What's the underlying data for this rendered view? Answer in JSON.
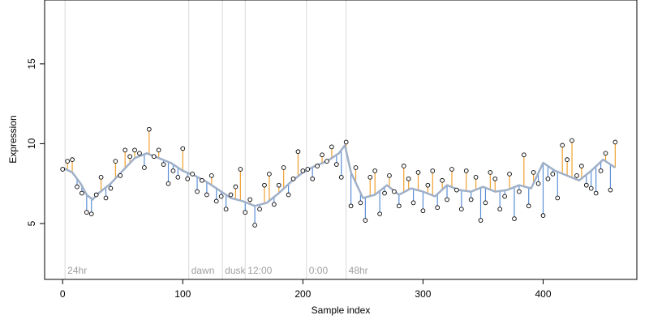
{
  "chart_data": {
    "type": "scatter",
    "title": "",
    "xlabel": "Sample index",
    "ylabel": "Expression",
    "xlim": [
      -15,
      478
    ],
    "ylim": [
      1.5,
      19.0
    ],
    "x_ticks": [
      0,
      100,
      200,
      300,
      400
    ],
    "y_ticks": [
      5,
      10,
      15
    ],
    "grid": false,
    "legend": null,
    "colors": {
      "point_stroke": "#000000",
      "smooth_line": "#9fb0c8",
      "residual_positive": "#f0a030",
      "residual_negative": "#5b8fd6",
      "phase_line": "#d9d9d9",
      "phase_text": "#a0a0a0"
    },
    "phase_markers": [
      {
        "label": "24hr",
        "x": 2
      },
      {
        "label": "dawn",
        "x": 105
      },
      {
        "label": "dusk",
        "x": 133
      },
      {
        "label": "12:00",
        "x": 152
      },
      {
        "label": "0:00",
        "x": 203
      },
      {
        "label": "48hr",
        "x": 236
      }
    ],
    "smooth_trend": {
      "name": "",
      "x": [
        0,
        8,
        15,
        20,
        25,
        30,
        40,
        50,
        60,
        70,
        80,
        90,
        100,
        110,
        120,
        130,
        140,
        150,
        160,
        170,
        180,
        190,
        200,
        210,
        220,
        230,
        235,
        240,
        250,
        260,
        270,
        280,
        290,
        300,
        310,
        320,
        330,
        340,
        350,
        360,
        370,
        380,
        390,
        400,
        410,
        420,
        430,
        440,
        450,
        460
      ],
      "y": [
        8.5,
        8.2,
        7.5,
        6.8,
        6.5,
        6.9,
        7.5,
        8.3,
        9.1,
        9.4,
        9.1,
        8.8,
        8.3,
        8.0,
        7.6,
        7.1,
        6.6,
        6.4,
        6.1,
        6.3,
        6.9,
        7.6,
        8.2,
        8.6,
        8.9,
        9.4,
        9.9,
        8.2,
        6.6,
        6.8,
        7.4,
        6.8,
        7.2,
        7.0,
        6.7,
        7.4,
        7.1,
        7.0,
        7.3,
        7.0,
        7.1,
        7.4,
        7.2,
        8.8,
        8.3,
        8.0,
        7.7,
        8.3,
        9.0,
        8.5
      ]
    },
    "series": [
      {
        "name": "",
        "x": [
          0,
          4,
          8,
          12,
          16,
          20,
          24,
          28,
          32,
          36,
          40,
          44,
          48,
          52,
          56,
          60,
          64,
          68,
          72,
          76,
          80,
          84,
          88,
          92,
          96,
          100,
          104,
          108,
          112,
          116,
          120,
          124,
          128,
          132,
          136,
          140,
          144,
          148,
          152,
          156,
          160,
          164,
          168,
          172,
          176,
          180,
          184,
          188,
          192,
          196,
          200,
          204,
          208,
          212,
          216,
          220,
          224,
          228,
          232,
          236,
          240,
          244,
          248,
          252,
          256,
          260,
          264,
          268,
          272,
          276,
          280,
          284,
          288,
          292,
          296,
          300,
          304,
          308,
          312,
          316,
          320,
          324,
          328,
          332,
          336,
          340,
          344,
          348,
          352,
          356,
          360,
          364,
          368,
          372,
          376,
          380,
          384,
          388,
          392,
          396,
          400,
          404,
          408,
          412,
          416,
          420,
          424,
          428,
          432,
          436,
          440,
          444,
          448,
          452,
          456,
          460
        ],
        "y": [
          8.4,
          8.9,
          9.0,
          7.3,
          6.9,
          5.7,
          5.6,
          6.8,
          7.9,
          6.6,
          7.2,
          8.9,
          8.0,
          9.6,
          9.2,
          9.6,
          9.4,
          8.5,
          10.9,
          9.2,
          9.6,
          8.7,
          7.5,
          8.3,
          7.9,
          9.7,
          7.8,
          8.1,
          7.0,
          7.7,
          6.8,
          8.0,
          6.4,
          6.7,
          5.9,
          6.8,
          7.3,
          8.4,
          5.7,
          6.5,
          4.9,
          5.9,
          7.4,
          8.1,
          6.2,
          7.4,
          8.5,
          6.8,
          7.8,
          9.5,
          8.3,
          8.4,
          7.8,
          8.6,
          9.3,
          8.9,
          9.8,
          8.7,
          7.9,
          10.1,
          6.1,
          8.5,
          6.3,
          5.2,
          7.9,
          8.3,
          5.6,
          6.9,
          8.0,
          7.0,
          6.1,
          8.6,
          7.8,
          6.3,
          8.2,
          5.8,
          7.4,
          8.3,
          6.0,
          7.7,
          6.5,
          8.4,
          7.1,
          5.9,
          8.3,
          6.5,
          7.9,
          5.2,
          6.3,
          8.2,
          7.8,
          5.9,
          6.7,
          8.1,
          5.3,
          7.0,
          9.3,
          6.1,
          8.2,
          7.5,
          5.5,
          7.8,
          8.1,
          6.6,
          9.9,
          9.0,
          10.2,
          8.0,
          8.6,
          7.4,
          7.2,
          6.9,
          8.3,
          9.4,
          7.1,
          10.1
        ]
      }
    ]
  }
}
